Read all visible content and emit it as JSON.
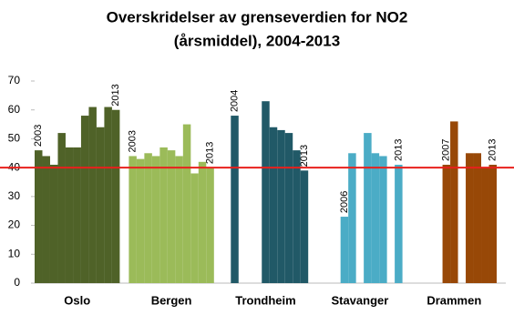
{
  "chart_data": {
    "type": "bar",
    "title": [
      "Overskridelser av grenseverdien for NO2",
      "(årsmiddel), 2004-2013"
    ],
    "ylim": [
      0,
      70
    ],
    "yticks": [
      0,
      10,
      20,
      30,
      40,
      50,
      60,
      70
    ],
    "reference_line": {
      "value": 40,
      "color": "#e8201c"
    },
    "series": [
      {
        "name": "Oslo",
        "color": "#4f6228",
        "values": [
          46,
          44,
          41,
          52,
          47,
          47,
          58,
          61,
          54,
          61,
          60
        ],
        "year_labels": [
          "2003",
          null,
          null,
          null,
          null,
          null,
          null,
          null,
          null,
          null,
          "2013"
        ]
      },
      {
        "name": "Bergen",
        "color": "#9bbb59",
        "values": [
          44,
          43,
          45,
          44,
          47,
          46,
          44,
          55,
          38,
          42,
          40
        ],
        "year_labels": [
          "2003",
          null,
          null,
          null,
          null,
          null,
          null,
          null,
          null,
          null,
          "2013"
        ]
      },
      {
        "name": "Trondheim",
        "color": "#215967",
        "values": [
          null,
          58,
          null,
          null,
          null,
          63,
          54,
          53,
          52,
          46,
          39
        ],
        "year_labels": [
          null,
          "2004",
          null,
          null,
          null,
          null,
          null,
          null,
          null,
          null,
          "2013"
        ]
      },
      {
        "name": "Stavanger",
        "color": "#4bacc6",
        "values": [
          null,
          null,
          null,
          23,
          45,
          null,
          52,
          45,
          44,
          null,
          41
        ],
        "year_labels": [
          null,
          null,
          null,
          "2006",
          null,
          null,
          null,
          null,
          null,
          null,
          "2013"
        ]
      },
      {
        "name": "Drammen",
        "color": "#984807",
        "values": [
          null,
          null,
          null,
          null,
          41,
          56,
          null,
          45,
          45,
          40,
          41
        ],
        "year_labels": [
          null,
          null,
          null,
          null,
          "2007",
          null,
          null,
          null,
          null,
          null,
          "2013"
        ]
      }
    ]
  }
}
